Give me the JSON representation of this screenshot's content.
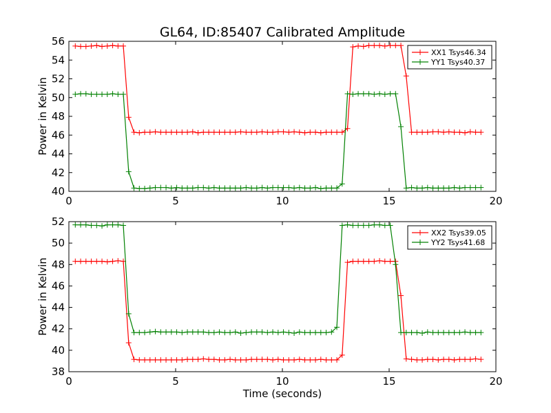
{
  "figure": {
    "title": "GL64, ID:85407 Calibrated Amplitude",
    "background": "#ffffff"
  },
  "chart_data": [
    {
      "type": "line",
      "ylabel": "Power in Kelvin",
      "xlabel": "",
      "xlim": [
        0,
        20
      ],
      "ylim": [
        40,
        56
      ],
      "xticks": [
        0,
        5,
        10,
        15,
        20
      ],
      "yticks": [
        40,
        42,
        44,
        46,
        48,
        50,
        52,
        54,
        56
      ],
      "grid": false,
      "legend_position": "top-right",
      "marker": "+",
      "x": [
        0.3,
        0.55,
        0.8,
        1.05,
        1.3,
        1.55,
        1.8,
        2.05,
        2.3,
        2.55,
        2.8,
        3.05,
        3.3,
        3.55,
        3.8,
        4.05,
        4.3,
        4.55,
        4.8,
        5.05,
        5.3,
        5.55,
        5.8,
        6.05,
        6.3,
        6.55,
        6.8,
        7.05,
        7.3,
        7.55,
        7.8,
        8.05,
        8.3,
        8.55,
        8.8,
        9.05,
        9.3,
        9.55,
        9.8,
        10.05,
        10.3,
        10.55,
        10.8,
        11.05,
        11.3,
        11.55,
        11.8,
        12.05,
        12.3,
        12.55,
        12.8,
        13.05,
        13.3,
        13.55,
        13.8,
        14.05,
        14.3,
        14.55,
        14.8,
        15.05,
        15.3,
        15.55,
        15.8,
        16.05,
        16.3,
        16.55,
        16.8,
        17.05,
        17.3,
        17.55,
        17.8,
        18.05,
        18.3,
        18.55,
        18.8,
        19.05,
        19.3
      ],
      "series": [
        {
          "name": "XX1 Tsys46.34",
          "color": "#ff0000",
          "values": [
            55.5,
            55.45,
            55.45,
            55.5,
            55.55,
            55.45,
            55.5,
            55.55,
            55.5,
            55.5,
            47.9,
            46.3,
            46.25,
            46.3,
            46.3,
            46.35,
            46.3,
            46.3,
            46.3,
            46.3,
            46.3,
            46.3,
            46.35,
            46.25,
            46.3,
            46.3,
            46.3,
            46.3,
            46.3,
            46.3,
            46.3,
            46.35,
            46.3,
            46.3,
            46.3,
            46.35,
            46.3,
            46.3,
            46.35,
            46.35,
            46.3,
            46.35,
            46.3,
            46.25,
            46.3,
            46.3,
            46.25,
            46.3,
            46.3,
            46.3,
            46.3,
            46.7,
            55.4,
            55.5,
            55.45,
            55.55,
            55.55,
            55.55,
            55.5,
            55.55,
            55.55,
            55.55,
            52.3,
            46.3,
            46.3,
            46.3,
            46.3,
            46.35,
            46.35,
            46.3,
            46.35,
            46.3,
            46.3,
            46.25,
            46.35,
            46.3,
            46.3
          ]
        },
        {
          "name": "YY1 Tsys40.37",
          "color": "#008000",
          "values": [
            50.35,
            50.4,
            50.4,
            50.35,
            50.35,
            50.35,
            50.35,
            50.4,
            50.35,
            50.35,
            42.1,
            40.35,
            40.3,
            40.3,
            40.35,
            40.4,
            40.4,
            40.4,
            40.35,
            40.4,
            40.35,
            40.35,
            40.35,
            40.4,
            40.4,
            40.35,
            40.4,
            40.35,
            40.35,
            40.35,
            40.35,
            40.35,
            40.4,
            40.35,
            40.35,
            40.4,
            40.35,
            40.4,
            40.4,
            40.4,
            40.4,
            40.35,
            40.4,
            40.35,
            40.35,
            40.4,
            40.3,
            40.35,
            40.35,
            40.35,
            40.8,
            50.4,
            50.35,
            50.4,
            50.4,
            50.4,
            50.35,
            50.4,
            50.35,
            50.4,
            50.4,
            46.9,
            40.35,
            40.4,
            40.35,
            40.35,
            40.4,
            40.35,
            40.35,
            40.35,
            40.35,
            40.4,
            40.35,
            40.4,
            40.4,
            40.4,
            40.4
          ]
        }
      ]
    },
    {
      "type": "line",
      "ylabel": "Power in Kelvin",
      "xlabel": "Time (seconds)",
      "xlim": [
        0,
        20
      ],
      "ylim": [
        38,
        52
      ],
      "xticks": [
        0,
        5,
        10,
        15,
        20
      ],
      "yticks": [
        38,
        40,
        42,
        44,
        46,
        48,
        50,
        52
      ],
      "grid": false,
      "legend_position": "top-right",
      "marker": "+",
      "x": [
        0.3,
        0.55,
        0.8,
        1.05,
        1.3,
        1.55,
        1.8,
        2.05,
        2.3,
        2.55,
        2.8,
        3.05,
        3.3,
        3.55,
        3.8,
        4.05,
        4.3,
        4.55,
        4.8,
        5.05,
        5.3,
        5.55,
        5.8,
        6.05,
        6.3,
        6.55,
        6.8,
        7.05,
        7.3,
        7.55,
        7.8,
        8.05,
        8.3,
        8.55,
        8.8,
        9.05,
        9.3,
        9.55,
        9.8,
        10.05,
        10.3,
        10.55,
        10.8,
        11.05,
        11.3,
        11.55,
        11.8,
        12.05,
        12.3,
        12.55,
        12.8,
        13.05,
        13.3,
        13.55,
        13.8,
        14.05,
        14.3,
        14.55,
        14.8,
        15.05,
        15.3,
        15.55,
        15.8,
        16.05,
        16.3,
        16.55,
        16.8,
        17.05,
        17.3,
        17.55,
        17.8,
        18.05,
        18.3,
        18.55,
        18.8,
        19.05,
        19.3
      ],
      "series": [
        {
          "name": "XX2 Tsys39.05",
          "color": "#ff0000",
          "values": [
            48.3,
            48.3,
            48.3,
            48.3,
            48.3,
            48.3,
            48.25,
            48.3,
            48.35,
            48.3,
            40.7,
            39.15,
            39.1,
            39.1,
            39.1,
            39.1,
            39.1,
            39.1,
            39.1,
            39.1,
            39.1,
            39.15,
            39.15,
            39.15,
            39.2,
            39.15,
            39.15,
            39.1,
            39.1,
            39.15,
            39.1,
            39.1,
            39.1,
            39.15,
            39.15,
            39.15,
            39.15,
            39.1,
            39.15,
            39.1,
            39.1,
            39.1,
            39.15,
            39.1,
            39.1,
            39.1,
            39.15,
            39.1,
            39.1,
            39.1,
            39.55,
            48.2,
            48.3,
            48.3,
            48.3,
            48.3,
            48.3,
            48.35,
            48.3,
            48.3,
            48.3,
            45.1,
            39.2,
            39.15,
            39.1,
            39.1,
            39.15,
            39.15,
            39.1,
            39.15,
            39.15,
            39.1,
            39.15,
            39.15,
            39.15,
            39.2,
            39.15
          ]
        },
        {
          "name": "YY2 Tsys41.68",
          "color": "#008000",
          "values": [
            51.7,
            51.7,
            51.7,
            51.65,
            51.65,
            51.6,
            51.7,
            51.7,
            51.7,
            51.65,
            43.4,
            41.65,
            41.65,
            41.65,
            41.7,
            41.75,
            41.7,
            41.7,
            41.7,
            41.7,
            41.65,
            41.7,
            41.7,
            41.7,
            41.7,
            41.65,
            41.65,
            41.7,
            41.65,
            41.65,
            41.7,
            41.6,
            41.65,
            41.7,
            41.7,
            41.7,
            41.65,
            41.7,
            41.65,
            41.7,
            41.65,
            41.6,
            41.7,
            41.65,
            41.65,
            41.65,
            41.65,
            41.65,
            41.7,
            42.15,
            51.65,
            51.7,
            51.65,
            51.65,
            51.65,
            51.65,
            51.7,
            51.7,
            51.65,
            51.65,
            48.0,
            41.65,
            41.65,
            41.65,
            41.65,
            41.6,
            41.7,
            41.65,
            41.65,
            41.65,
            41.65,
            41.65,
            41.65,
            41.7,
            41.65,
            41.65,
            41.65
          ]
        }
      ]
    }
  ]
}
